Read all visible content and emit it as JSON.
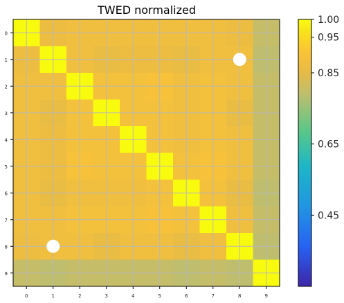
{
  "chart_data": {
    "type": "heatmap",
    "title": "TWED normalized",
    "x_ticks": [
      "0",
      "1",
      "2",
      "3",
      "4",
      "5",
      "6",
      "7",
      "8",
      "9"
    ],
    "y_ticks": [
      "0",
      "1",
      "2",
      "3",
      "4",
      "5",
      "6",
      "7",
      "8",
      "9"
    ],
    "values": [
      [
        1.0,
        0.87,
        0.88,
        0.88,
        0.88,
        0.88,
        0.88,
        0.88,
        0.87,
        0.8
      ],
      [
        0.87,
        1.0,
        0.88,
        0.86,
        0.87,
        0.87,
        0.86,
        0.88,
        0.88,
        0.79
      ],
      [
        0.88,
        0.88,
        1.0,
        0.89,
        0.89,
        0.9,
        0.88,
        0.89,
        0.88,
        0.8
      ],
      [
        0.88,
        0.86,
        0.89,
        1.0,
        0.89,
        0.89,
        0.88,
        0.89,
        0.86,
        0.8
      ],
      [
        0.88,
        0.87,
        0.89,
        0.89,
        1.0,
        0.89,
        0.88,
        0.89,
        0.88,
        0.8
      ],
      [
        0.88,
        0.87,
        0.9,
        0.89,
        0.89,
        1.0,
        0.89,
        0.9,
        0.88,
        0.8
      ],
      [
        0.88,
        0.86,
        0.88,
        0.88,
        0.88,
        0.89,
        1.0,
        0.89,
        0.86,
        0.79
      ],
      [
        0.88,
        0.88,
        0.89,
        0.89,
        0.89,
        0.9,
        0.89,
        1.0,
        0.88,
        0.8
      ],
      [
        0.87,
        0.88,
        0.88,
        0.86,
        0.88,
        0.88,
        0.86,
        0.88,
        1.0,
        0.79
      ],
      [
        0.8,
        0.79,
        0.8,
        0.8,
        0.8,
        0.8,
        0.79,
        0.8,
        0.79,
        1.0
      ]
    ],
    "markers": [
      {
        "x": 8,
        "y": 1
      },
      {
        "x": 1,
        "y": 8
      }
    ],
    "grid": true,
    "colormap": "parula",
    "colorbar": {
      "range": [
        0.25,
        1.0
      ],
      "tick_values": [
        0.45,
        0.65,
        0.85,
        0.95,
        1.0
      ],
      "tick_labels": [
        "0.45",
        "0.65",
        "0.85",
        "0.95",
        "1.00"
      ]
    }
  }
}
